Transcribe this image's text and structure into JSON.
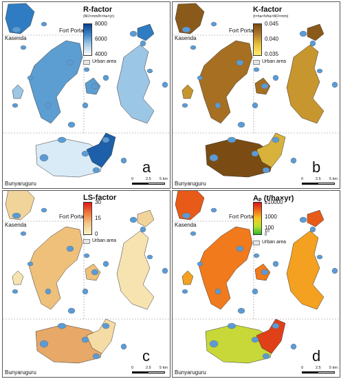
{
  "panels": [
    {
      "id": "a",
      "letter": "a",
      "legend": {
        "title": "R-factor",
        "units": "(MJ×mm/h×ha×yr)",
        "ticks": [
          "8000",
          "6000",
          "4000"
        ],
        "gradient": [
          "#0b3f8f",
          "#3a85c8",
          "#a9cde9",
          "#ffffff"
        ],
        "urban_label": "Urban area"
      },
      "scalebar": {
        "labels": [
          "0",
          "2.5",
          "5 km"
        ]
      }
    },
    {
      "id": "b",
      "letter": "b",
      "legend": {
        "title": "K-factor",
        "units": "(t×ha×h/ha×MJ×mm)",
        "ticks": [
          "0.045",
          "0.040",
          "0.035"
        ],
        "gradient": [
          "#7a4a12",
          "#b07a2a",
          "#e8c23c",
          "#fff070"
        ],
        "urban_label": "Urban area"
      },
      "scalebar": {
        "labels": [
          "0",
          "2.5",
          "5 km"
        ]
      }
    },
    {
      "id": "c",
      "letter": "c",
      "legend": {
        "title": "LS-factor",
        "units": "",
        "ticks": [
          "30",
          "15",
          "0"
        ],
        "gradient": [
          "#e11818",
          "#f07a3a",
          "#f2c98c",
          "#fbf4c4"
        ],
        "urban_label": "Urban area"
      },
      "scalebar": {
        "labels": [
          "0",
          "2.5",
          "5 km"
        ]
      }
    },
    {
      "id": "d",
      "letter": "d",
      "legend": {
        "title": "Aₚ (t/ha×yr)",
        "units": "",
        "ticks": [
          "≥10000",
          "1000",
          "100",
          "10",
          "0"
        ],
        "gradient": [
          "#d81818",
          "#f06a1a",
          "#f6c820",
          "#b8e030",
          "#2fb82f"
        ],
        "urban_label": "Urban area"
      },
      "scalebar": {
        "labels": [
          "0",
          "2.5",
          "5 km"
        ]
      }
    }
  ],
  "towns": {
    "fort_portal": "Fort Portal",
    "kasenda": "Kasenda",
    "bunyaruguru": "Bunyaruguru"
  },
  "colors": {
    "urban_blue": "#5b9bd5",
    "panel_a_fill": [
      "#2f7cc2",
      "#5c9ed2",
      "#9cc6e6",
      "#d9ebf7",
      "#1d5fa8"
    ],
    "panel_b_fill": [
      "#8a5a1a",
      "#a66f22",
      "#c8962e",
      "#7a4c14",
      "#d8b23a"
    ],
    "panel_c_fill": [
      "#f1d49a",
      "#eec07a",
      "#f6e3b0",
      "#e7a868",
      "#f4dca4"
    ],
    "panel_d_fill": [
      "#e85a18",
      "#f07a1c",
      "#f4a020",
      "#c8d838",
      "#e04018"
    ]
  }
}
